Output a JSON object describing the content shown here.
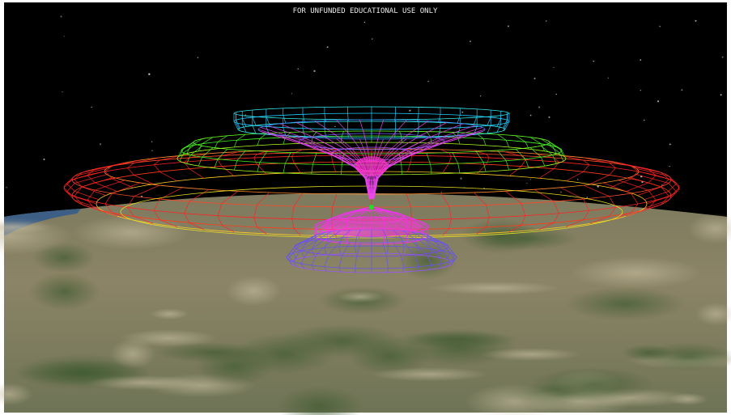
{
  "watermark": "FOR UNFUNDED EDUCATIONAL USE ONLY"
}
